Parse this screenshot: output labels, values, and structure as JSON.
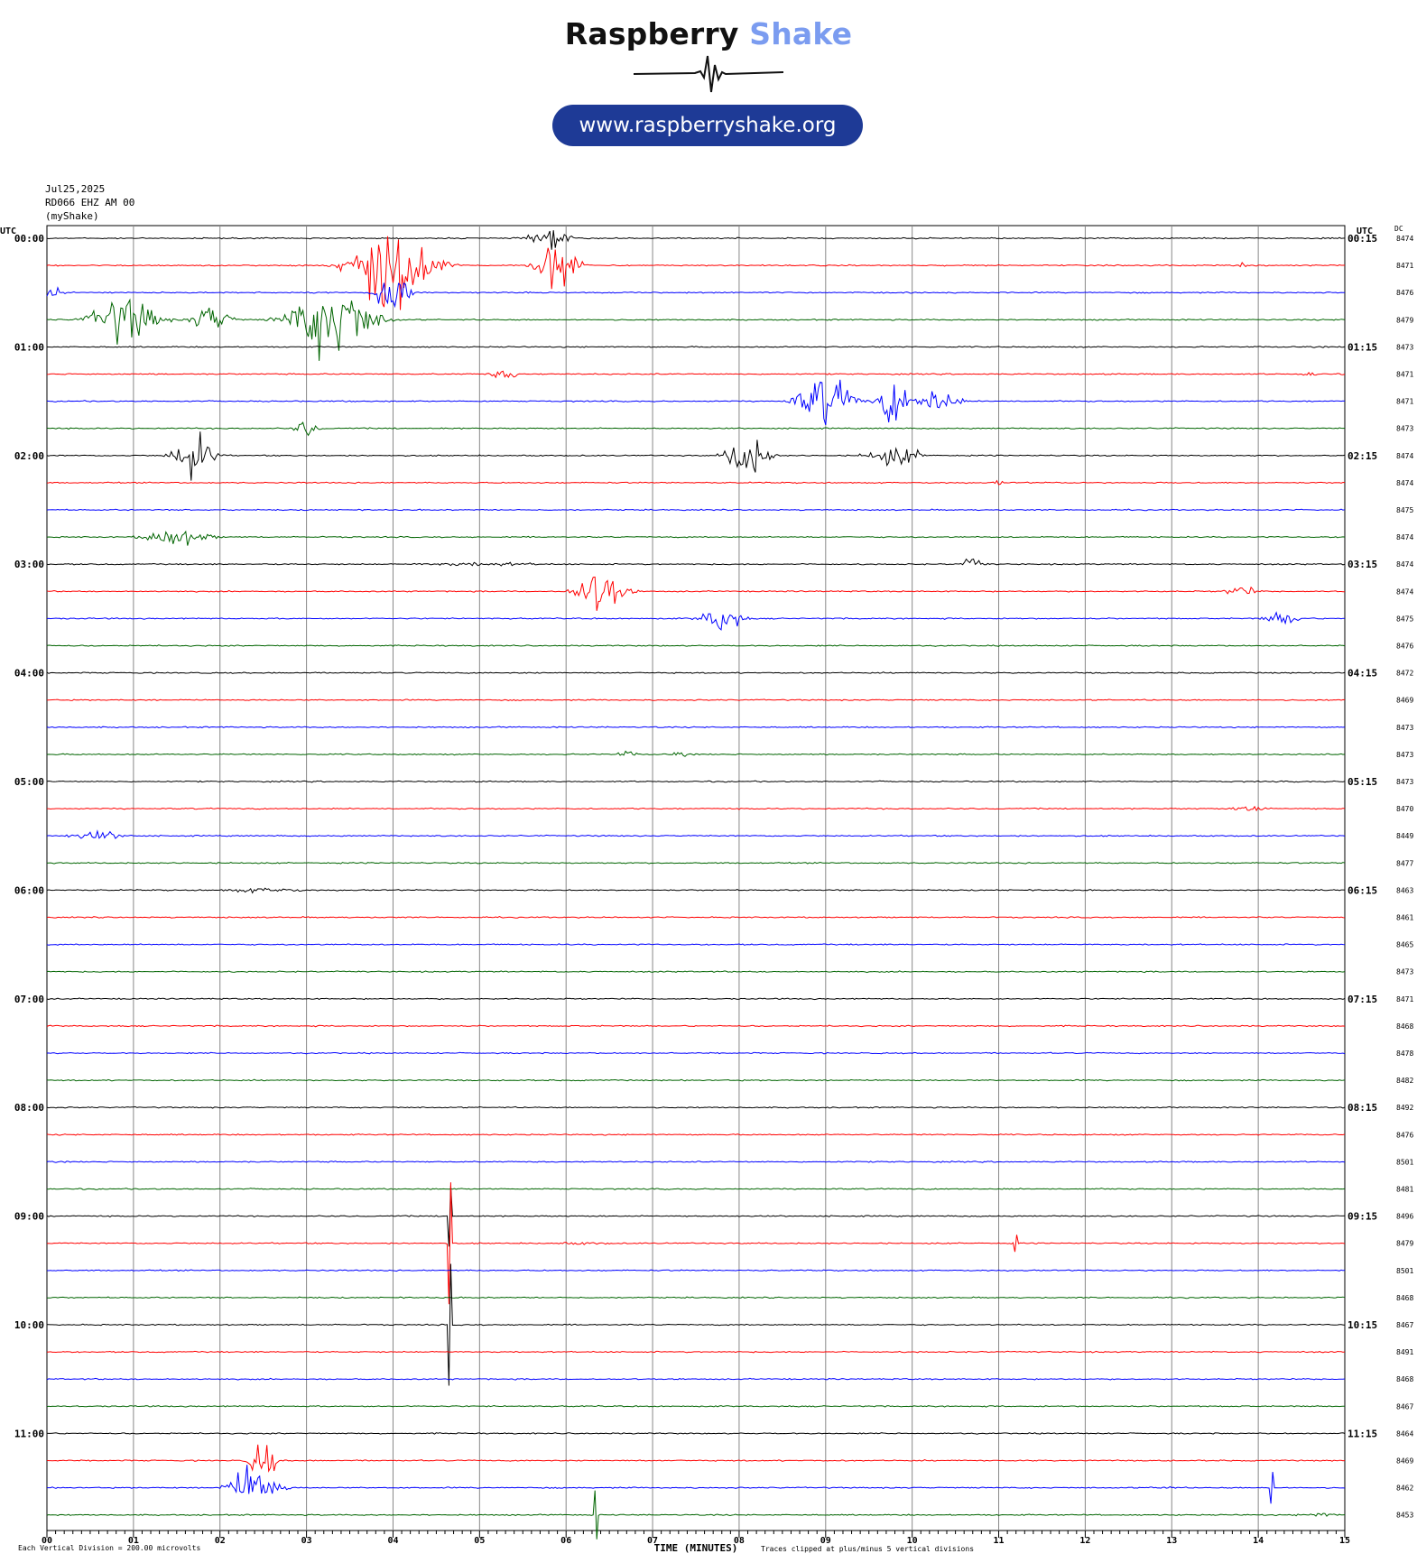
{
  "logo": {
    "brand_main": "Raspberry",
    "brand_accent": "Shake",
    "url": "www.raspberryshake.org",
    "accent_color": "#7b9cf0",
    "pill_color": "#1e3a96"
  },
  "header": {
    "date": "Jul25,2025",
    "station": "RD066 EHZ AM 00",
    "source": "(myShake)"
  },
  "chart_data": {
    "type": "line",
    "title": "",
    "left_axis_label": "UTC",
    "right_axis_label": "UTC",
    "dc_label": "DC",
    "xlabel": "TIME (MINUTES)",
    "xlim": [
      0,
      15
    ],
    "x_ticks": [
      "00",
      "01",
      "02",
      "03",
      "04",
      "05",
      "06",
      "07",
      "08",
      "09",
      "10",
      "11",
      "12",
      "13",
      "14",
      "15"
    ],
    "footer_scale": "Each Vertical Division =  200.00 microvolts",
    "footer_clip": "Traces clipped at plus/minus 5 vertical divisions",
    "trace_colors": [
      "#000000",
      "#ff0000",
      "#0000ff",
      "#006400"
    ],
    "rows": 48,
    "left_hour_labels": [
      "00:00",
      "01:00",
      "02:00",
      "03:00",
      "04:00",
      "05:00",
      "06:00",
      "07:00",
      "08:00",
      "09:00",
      "10:00",
      "11:00"
    ],
    "right_hour_labels": [
      "00:15",
      "01:15",
      "02:15",
      "03:15",
      "04:15",
      "05:15",
      "06:15",
      "07:15",
      "08:15",
      "09:15",
      "10:15",
      "11:15"
    ],
    "dc_values": [
      "8474",
      "8471",
      "8476",
      "8479",
      "8473",
      "8471",
      "8471",
      "8473",
      "8474",
      "8474",
      "8475",
      "8474",
      "8474",
      "8474",
      "8475",
      "8476",
      "8472",
      "8469",
      "8473",
      "8473",
      "8473",
      "8470",
      "8449",
      "8477",
      "8463",
      "8461",
      "8465",
      "8473",
      "8471",
      "8468",
      "8478",
      "8482",
      "8492",
      "8476",
      "8501",
      "8481",
      "8496",
      "8479",
      "8501",
      "8468",
      "8467",
      "8491",
      "8468",
      "8467",
      "8464",
      "8469",
      "8462",
      "8453"
    ],
    "events": [
      {
        "row": 0,
        "minute": 5.8,
        "amplitude": 2.2,
        "duration": 0.5
      },
      {
        "row": 1,
        "minute": 4.0,
        "amplitude": 9.0,
        "duration": 1.0
      },
      {
        "row": 1,
        "minute": 5.9,
        "amplitude": 5.5,
        "duration": 0.5
      },
      {
        "row": 1,
        "minute": 13.8,
        "amplitude": 0.6,
        "duration": 0.2
      },
      {
        "row": 2,
        "minute": 0.05,
        "amplitude": 1.5,
        "duration": 0.3
      },
      {
        "row": 2,
        "minute": 4.0,
        "amplitude": 6.0,
        "duration": 0.4
      },
      {
        "row": 3,
        "minute": 0.9,
        "amplitude": 5.0,
        "duration": 0.8
      },
      {
        "row": 3,
        "minute": 1.9,
        "amplitude": 3.0,
        "duration": 0.5
      },
      {
        "row": 3,
        "minute": 3.3,
        "amplitude": 8.0,
        "duration": 1.0
      },
      {
        "row": 5,
        "minute": 5.3,
        "amplitude": 1.1,
        "duration": 0.4
      },
      {
        "row": 5,
        "minute": 14.6,
        "amplitude": 0.8,
        "duration": 0.2
      },
      {
        "row": 6,
        "minute": 9.0,
        "amplitude": 5.0,
        "duration": 0.7
      },
      {
        "row": 6,
        "minute": 9.8,
        "amplitude": 5.0,
        "duration": 0.4
      },
      {
        "row": 6,
        "minute": 10.3,
        "amplitude": 3.0,
        "duration": 0.5
      },
      {
        "row": 7,
        "minute": 3.0,
        "amplitude": 1.8,
        "duration": 0.3
      },
      {
        "row": 8,
        "minute": 1.7,
        "amplitude": 5.0,
        "duration": 0.5
      },
      {
        "row": 8,
        "minute": 8.1,
        "amplitude": 5.0,
        "duration": 0.5
      },
      {
        "row": 8,
        "minute": 9.8,
        "amplitude": 2.0,
        "duration": 0.7
      },
      {
        "row": 9,
        "minute": 11.0,
        "amplitude": 0.9,
        "duration": 0.1
      },
      {
        "row": 11,
        "minute": 1.5,
        "amplitude": 2.0,
        "duration": 0.8
      },
      {
        "row": 12,
        "minute": 10.7,
        "amplitude": 1.2,
        "duration": 0.3
      },
      {
        "row": 12,
        "minute": 5.0,
        "amplitude": 0.4,
        "duration": 2.0
      },
      {
        "row": 13,
        "minute": 6.4,
        "amplitude": 5.0,
        "duration": 0.6
      },
      {
        "row": 13,
        "minute": 13.8,
        "amplitude": 1.2,
        "duration": 0.4
      },
      {
        "row": 14,
        "minute": 7.8,
        "amplitude": 3.0,
        "duration": 0.5
      },
      {
        "row": 14,
        "minute": 14.3,
        "amplitude": 1.5,
        "duration": 0.5
      },
      {
        "row": 19,
        "minute": 6.7,
        "amplitude": 0.7,
        "duration": 0.3
      },
      {
        "row": 19,
        "minute": 7.3,
        "amplitude": 0.5,
        "duration": 0.3
      },
      {
        "row": 21,
        "minute": 13.9,
        "amplitude": 0.9,
        "duration": 0.4
      },
      {
        "row": 22,
        "minute": 0.6,
        "amplitude": 0.9,
        "duration": 0.8
      },
      {
        "row": 24,
        "minute": 2.5,
        "amplitude": 0.5,
        "duration": 1.2
      },
      {
        "row": 36,
        "minute": 4.65,
        "amplitude": 2.5,
        "duration": 0.02
      },
      {
        "row": 37,
        "minute": 4.65,
        "amplitude": 5.0,
        "duration": 0.02
      },
      {
        "row": 37,
        "minute": 6.2,
        "amplitude": 0.3,
        "duration": 1.0
      },
      {
        "row": 37,
        "minute": 11.2,
        "amplitude": 0.7,
        "duration": 0.02
      },
      {
        "row": 40,
        "minute": 4.65,
        "amplitude": 5.0,
        "duration": 0.02
      },
      {
        "row": 45,
        "minute": 2.5,
        "amplitude": 5.0,
        "duration": 0.3
      },
      {
        "row": 46,
        "minute": 2.4,
        "amplitude": 5.0,
        "duration": 0.6
      },
      {
        "row": 46,
        "minute": 14.15,
        "amplitude": 1.3,
        "duration": 0.05
      },
      {
        "row": 46,
        "minute": 12.9,
        "amplitude": 0.5,
        "duration": 0.3
      },
      {
        "row": 47,
        "minute": 6.35,
        "amplitude": 2.0,
        "duration": 0.05
      },
      {
        "row": 47,
        "minute": 14.7,
        "amplitude": 0.5,
        "duration": 0.6
      }
    ]
  }
}
